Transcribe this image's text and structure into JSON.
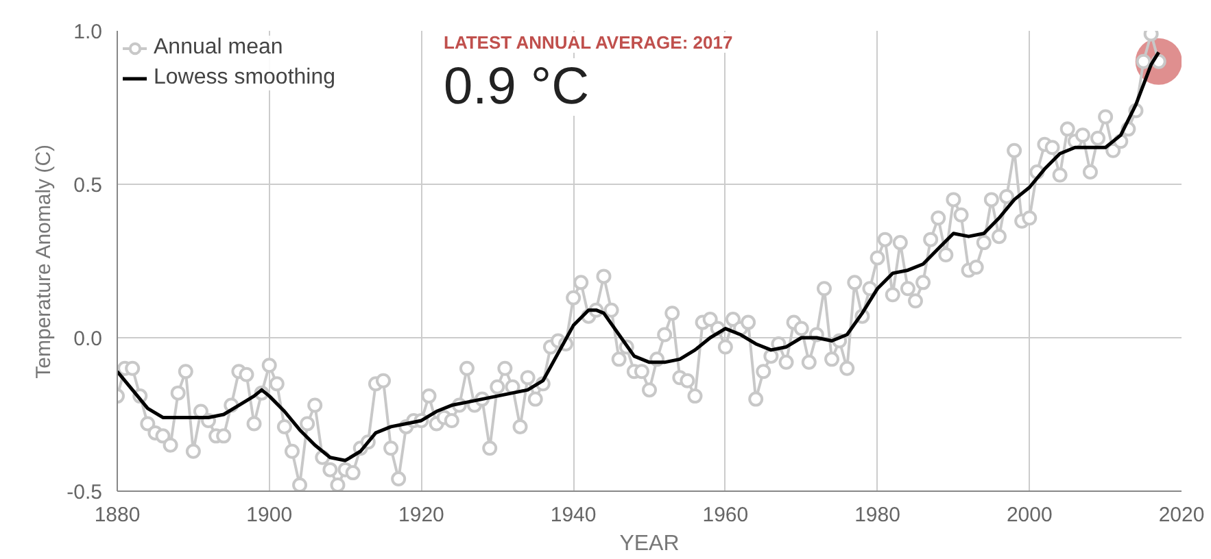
{
  "chart_data": {
    "type": "line",
    "xlabel": "YEAR",
    "ylabel": "Temperature Anomaly (C)",
    "xlim": [
      1880,
      2020
    ],
    "xticks": [
      1880,
      1900,
      1920,
      1940,
      1960,
      1980,
      2000,
      2020
    ],
    "ylim": [
      -0.5,
      1.0
    ],
    "yticks": [
      {
        "value": -0.5,
        "label": "-0.5"
      },
      {
        "value": 0.0,
        "label": "0.0"
      },
      {
        "value": 0.5,
        "label": "0.5"
      },
      {
        "value": 1.0,
        "label": "1.0"
      }
    ],
    "grid": true,
    "legend": "top left",
    "annotations": [
      "LATEST ANNUAL AVERAGE: 2017",
      "0.9 °C"
    ],
    "series": [
      {
        "name": "Annual mean",
        "color": "#c8c8c8",
        "marker": "circle",
        "x": [
          1880,
          1881,
          1882,
          1883,
          1884,
          1885,
          1886,
          1887,
          1888,
          1889,
          1890,
          1891,
          1892,
          1893,
          1894,
          1895,
          1896,
          1897,
          1898,
          1899,
          1900,
          1901,
          1902,
          1903,
          1904,
          1905,
          1906,
          1907,
          1908,
          1909,
          1910,
          1911,
          1912,
          1913,
          1914,
          1915,
          1916,
          1917,
          1918,
          1919,
          1920,
          1921,
          1922,
          1923,
          1924,
          1925,
          1926,
          1927,
          1928,
          1929,
          1930,
          1931,
          1932,
          1933,
          1934,
          1935,
          1936,
          1937,
          1938,
          1939,
          1940,
          1941,
          1942,
          1943,
          1944,
          1945,
          1946,
          1947,
          1948,
          1949,
          1950,
          1951,
          1952,
          1953,
          1954,
          1955,
          1956,
          1957,
          1958,
          1959,
          1960,
          1961,
          1962,
          1963,
          1964,
          1965,
          1966,
          1967,
          1968,
          1969,
          1970,
          1971,
          1972,
          1973,
          1974,
          1975,
          1976,
          1977,
          1978,
          1979,
          1980,
          1981,
          1982,
          1983,
          1984,
          1985,
          1986,
          1987,
          1988,
          1989,
          1990,
          1991,
          1992,
          1993,
          1994,
          1995,
          1996,
          1997,
          1998,
          1999,
          2000,
          2001,
          2002,
          2003,
          2004,
          2005,
          2006,
          2007,
          2008,
          2009,
          2010,
          2011,
          2012,
          2013,
          2014,
          2015,
          2016,
          2017
        ],
        "values": [
          -0.19,
          -0.1,
          -0.1,
          -0.19,
          -0.28,
          -0.31,
          -0.32,
          -0.35,
          -0.18,
          -0.11,
          -0.37,
          -0.24,
          -0.27,
          -0.32,
          -0.32,
          -0.22,
          -0.11,
          -0.12,
          -0.28,
          -0.18,
          -0.09,
          -0.15,
          -0.29,
          -0.37,
          -0.48,
          -0.28,
          -0.22,
          -0.39,
          -0.43,
          -0.48,
          -0.43,
          -0.44,
          -0.36,
          -0.34,
          -0.15,
          -0.14,
          -0.36,
          -0.46,
          -0.29,
          -0.27,
          -0.27,
          -0.19,
          -0.28,
          -0.26,
          -0.27,
          -0.22,
          -0.1,
          -0.22,
          -0.2,
          -0.36,
          -0.16,
          -0.1,
          -0.16,
          -0.29,
          -0.13,
          -0.2,
          -0.15,
          -0.03,
          -0.01,
          -0.02,
          0.13,
          0.18,
          0.07,
          0.09,
          0.2,
          0.09,
          -0.07,
          -0.03,
          -0.11,
          -0.11,
          -0.17,
          -0.07,
          0.01,
          0.08,
          -0.13,
          -0.14,
          -0.19,
          0.05,
          0.06,
          0.03,
          -0.03,
          0.06,
          0.03,
          0.05,
          -0.2,
          -0.11,
          -0.06,
          -0.02,
          -0.08,
          0.05,
          0.03,
          -0.08,
          0.01,
          0.16,
          -0.07,
          -0.01,
          -0.1,
          0.18,
          0.07,
          0.16,
          0.26,
          0.32,
          0.14,
          0.31,
          0.16,
          0.12,
          0.18,
          0.32,
          0.39,
          0.27,
          0.45,
          0.4,
          0.22,
          0.23,
          0.31,
          0.45,
          0.33,
          0.46,
          0.61,
          0.38,
          0.39,
          0.54,
          0.63,
          0.62,
          0.53,
          0.68,
          0.64,
          0.66,
          0.54,
          0.65,
          0.72,
          0.61,
          0.64,
          0.68,
          0.74,
          0.9,
          0.99,
          0.9
        ]
      },
      {
        "name": "Lowess smoothing",
        "color": "#000000",
        "marker": "none",
        "x": [
          1880,
          1882,
          1884,
          1886,
          1888,
          1890,
          1892,
          1894,
          1896,
          1898,
          1899,
          1900,
          1902,
          1904,
          1906,
          1908,
          1910,
          1912,
          1914,
          1916,
          1918,
          1920,
          1922,
          1924,
          1926,
          1928,
          1930,
          1932,
          1934,
          1936,
          1938,
          1940,
          1942,
          1943,
          1944,
          1946,
          1948,
          1950,
          1952,
          1954,
          1956,
          1958,
          1960,
          1962,
          1964,
          1966,
          1968,
          1970,
          1972,
          1974,
          1976,
          1978,
          1980,
          1982,
          1984,
          1986,
          1988,
          1990,
          1992,
          1994,
          1996,
          1998,
          2000,
          2002,
          2004,
          2006,
          2008,
          2010,
          2012,
          2014,
          2016,
          2017
        ],
        "values": [
          -0.11,
          -0.17,
          -0.23,
          -0.26,
          -0.26,
          -0.26,
          -0.26,
          -0.25,
          -0.22,
          -0.19,
          -0.17,
          -0.19,
          -0.24,
          -0.3,
          -0.35,
          -0.39,
          -0.4,
          -0.37,
          -0.31,
          -0.29,
          -0.28,
          -0.27,
          -0.24,
          -0.22,
          -0.21,
          -0.2,
          -0.19,
          -0.18,
          -0.17,
          -0.14,
          -0.05,
          0.04,
          0.09,
          0.09,
          0.08,
          0.01,
          -0.06,
          -0.08,
          -0.08,
          -0.07,
          -0.04,
          0.0,
          0.03,
          0.01,
          -0.02,
          -0.04,
          -0.03,
          0.0,
          0.0,
          -0.01,
          0.01,
          0.08,
          0.16,
          0.21,
          0.22,
          0.24,
          0.29,
          0.34,
          0.33,
          0.34,
          0.39,
          0.45,
          0.49,
          0.55,
          0.6,
          0.62,
          0.62,
          0.62,
          0.66,
          0.76,
          0.89,
          0.93
        ]
      },
      {
        "type": "scatter",
        "color": "#d46a6a",
        "marker": "circle",
        "x": [
          2017
        ],
        "values": [
          0.9
        ]
      }
    ]
  }
}
